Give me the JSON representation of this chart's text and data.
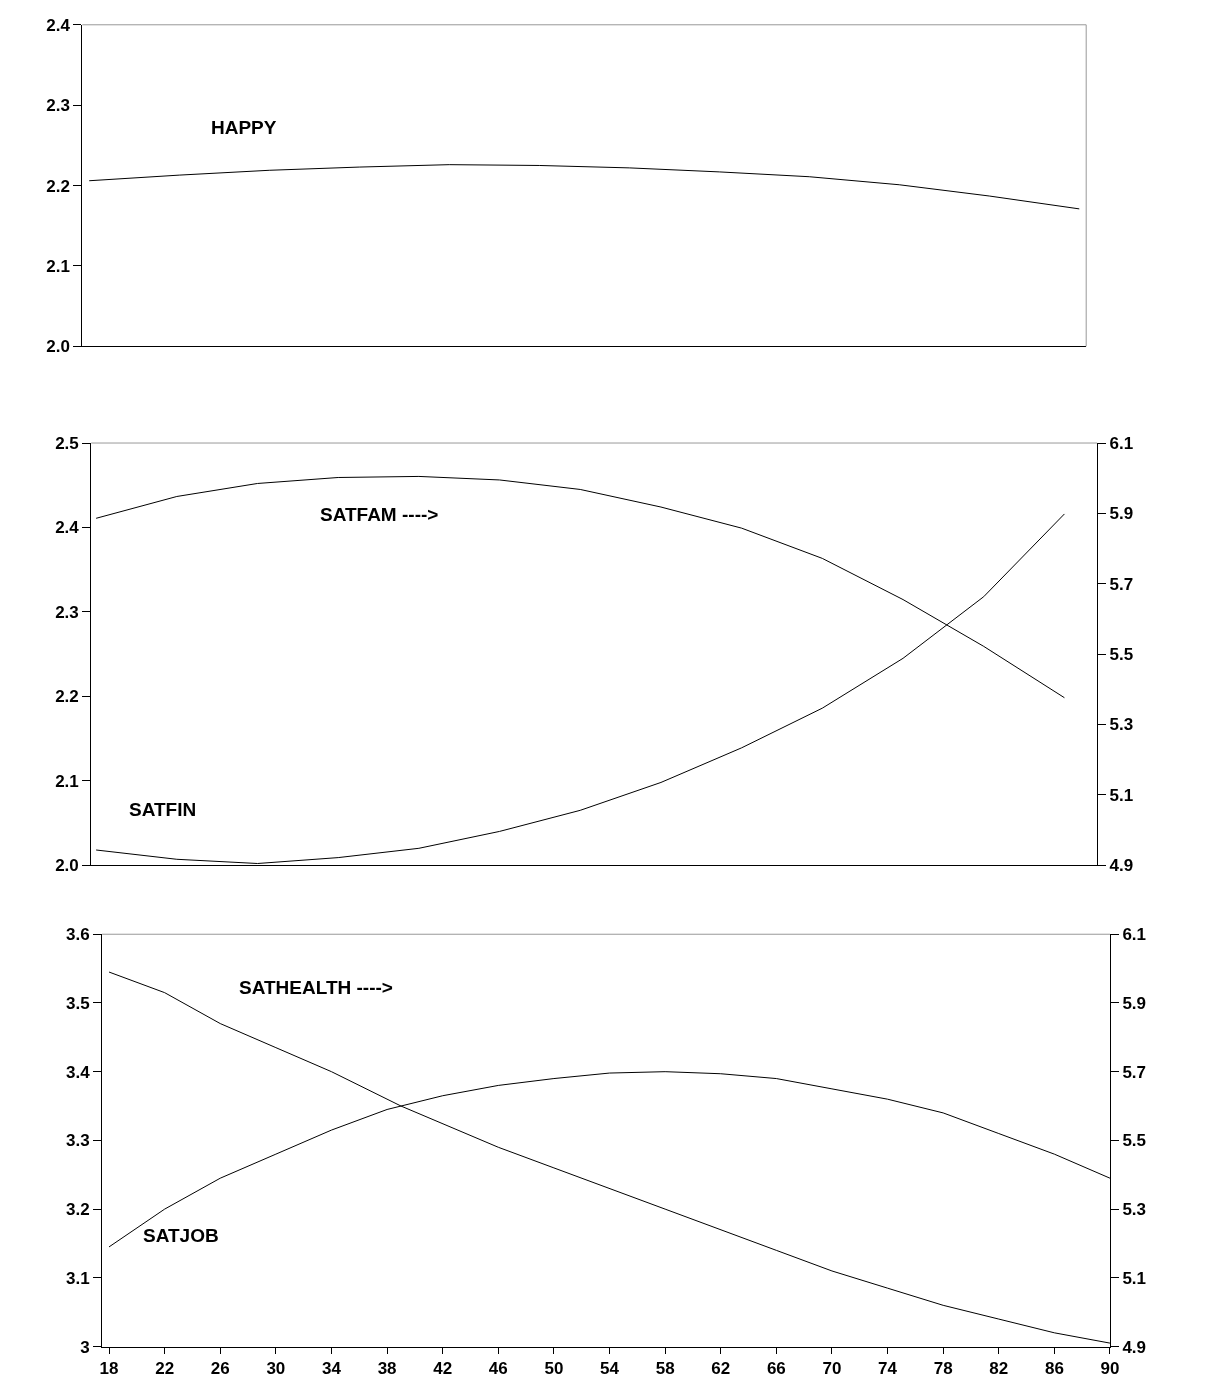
{
  "chart_data": [
    {
      "type": "line",
      "categories": [
        null,
        null,
        null,
        null,
        null,
        null,
        null,
        null,
        null,
        null,
        null,
        null
      ],
      "ylim": [
        2.0,
        2.4
      ],
      "yticks": [
        {
          "value": 2.0,
          "label": "2.0"
        },
        2.1,
        2.2,
        2.3,
        2.4
      ],
      "tick_labels": "y",
      "marker": "none",
      "line_style": "solid",
      "series": [
        {
          "name": "HAPPY",
          "color": "#000000",
          "values": [
            2.206,
            2.213,
            2.219,
            2.223,
            2.226,
            2.225,
            2.222,
            2.217,
            2.211,
            2.201,
            2.187,
            2.171
          ]
        }
      ]
    },
    {
      "type": "line",
      "categories": [
        null,
        null,
        null,
        null,
        null,
        null,
        null,
        null,
        null,
        null,
        null,
        null,
        null
      ],
      "ylim": [
        2.0,
        2.5
      ],
      "yticks": [
        {
          "value": 2.0,
          "label": "2.0"
        },
        2.1,
        2.2,
        2.3,
        2.4,
        2.5
      ],
      "y2lim": [
        4.9,
        6.1
      ],
      "y2ticks": [
        4.9,
        5.1,
        5.3,
        5.5,
        5.7,
        5.9,
        6.1
      ],
      "tick_labels": "y",
      "marker": "none",
      "line_style": "solid",
      "series": [
        {
          "name": "SATFAM ---->",
          "color": "#000000",
          "axis": "y2",
          "values": [
            5.886,
            5.948,
            5.985,
            6.002,
            6.005,
            5.995,
            5.968,
            5.918,
            5.858,
            5.772,
            5.655,
            5.522,
            5.376
          ]
        },
        {
          "name": "SATFIN",
          "color": "#000000",
          "values": [
            2.018,
            2.007,
            2.002,
            2.009,
            2.02,
            2.04,
            2.065,
            2.098,
            2.139,
            2.186,
            2.245,
            2.318,
            2.416
          ]
        }
      ]
    },
    {
      "type": "line",
      "xlim": [
        17.5,
        90
      ],
      "xticks": [
        18,
        22,
        26,
        30,
        34,
        38,
        42,
        46,
        50,
        54,
        58,
        62,
        66,
        70,
        74,
        78,
        82,
        86,
        90
      ],
      "ylim": [
        3,
        3.6
      ],
      "yticks": [
        3,
        3.1,
        3.2,
        3.3,
        3.4,
        3.5,
        3.6
      ],
      "y2lim": [
        4.9,
        6.1
      ],
      "y2ticks": [
        4.9,
        5.1,
        5.3,
        5.5,
        5.7,
        5.9,
        6.1
      ],
      "marker": "none",
      "line_style": "solid",
      "series": [
        {
          "name": "SATHEALTH ---->",
          "color": "#000000",
          "axis": "y2",
          "x": [
            18,
            22,
            26,
            30,
            34,
            39,
            46,
            50,
            58,
            66,
            70,
            74,
            78,
            82,
            86,
            90
          ],
          "values": [
            5.99,
            5.93,
            5.84,
            5.77,
            5.7,
            5.6,
            5.48,
            5.42,
            5.3,
            5.18,
            5.12,
            5.07,
            5.02,
            4.98,
            4.94,
            4.91
          ]
        },
        {
          "name": "SATJOB",
          "color": "#000000",
          "x": [
            18,
            22,
            26,
            30,
            34,
            38,
            42,
            46,
            50,
            54,
            58,
            62,
            66,
            70,
            74,
            78,
            82,
            86,
            90
          ],
          "values": [
            3.145,
            3.2,
            3.245,
            3.28,
            3.315,
            3.345,
            3.365,
            3.38,
            3.39,
            3.398,
            3.4,
            3.397,
            3.39,
            3.375,
            3.36,
            3.34,
            3.31,
            3.28,
            3.245
          ]
        }
      ]
    }
  ]
}
